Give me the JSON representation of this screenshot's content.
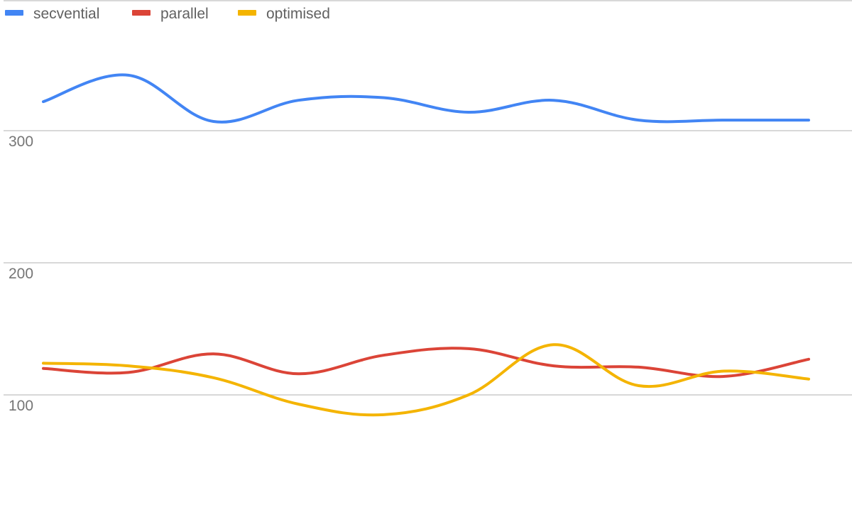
{
  "chart_data": {
    "type": "line",
    "smooth": true,
    "x": [
      1,
      2,
      3,
      4,
      5,
      6,
      7,
      8,
      9,
      10
    ],
    "series": [
      {
        "name": "secvential",
        "color": "#4285F4",
        "values": [
          322,
          342,
          307,
          323,
          325,
          314,
          323,
          308,
          308,
          308
        ]
      },
      {
        "name": "parallel",
        "color": "#DB4437",
        "values": [
          120,
          117,
          131,
          116,
          130,
          135,
          122,
          121,
          114,
          127
        ]
      },
      {
        "name": "optimised",
        "color": "#F4B400",
        "values": [
          124,
          122,
          113,
          93,
          85,
          100,
          138,
          107,
          118,
          112
        ]
      }
    ],
    "y_ticks": [
      "300",
      "200",
      "100"
    ],
    "y_tick_values": [
      300,
      200,
      100
    ],
    "ylim": [
      0,
      400
    ],
    "grid": true,
    "legend_position": "top-left",
    "title": "",
    "xlabel": "",
    "ylabel": ""
  }
}
